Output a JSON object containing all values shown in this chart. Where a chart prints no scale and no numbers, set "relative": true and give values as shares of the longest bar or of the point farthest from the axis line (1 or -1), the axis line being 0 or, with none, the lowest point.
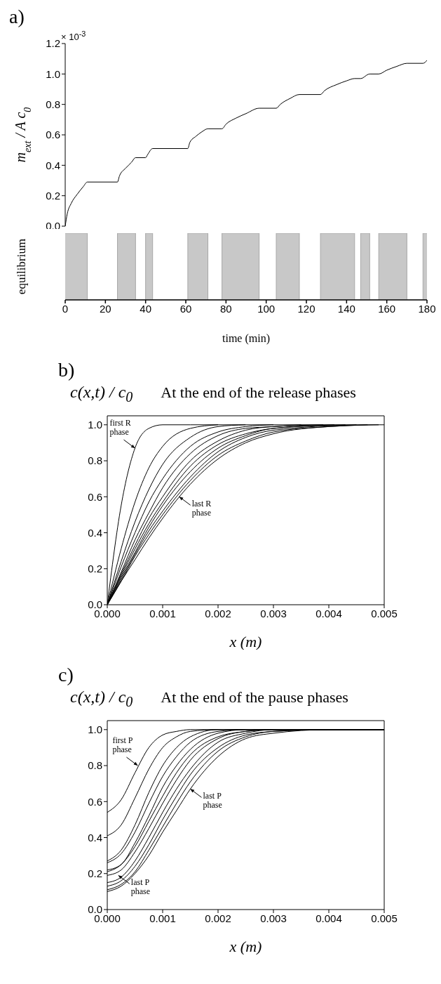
{
  "chart_data": [
    {
      "type": "line",
      "title": "a)",
      "ylabel": "m$_{ext}$ / A c$_{0}$",
      "annotations": [
        "× 10$^{-3}$"
      ],
      "tick_labels": "y",
      "marker": "none",
      "line_style": "solid",
      "xlim": [
        0,
        180
      ],
      "xticks": [
        0,
        20,
        40,
        60,
        80,
        100,
        120,
        140,
        160,
        180
      ],
      "ylim": [
        0,
        1.2
      ],
      "yticks": [
        {
          "value": 0,
          "label": "0.0"
        },
        {
          "value": 0.2,
          "label": "0.2"
        },
        {
          "value": 0.4,
          "label": "0.4"
        },
        {
          "value": 0.6,
          "label": "0.6"
        },
        {
          "value": 0.8,
          "label": "0.8"
        },
        {
          "value": 1,
          "label": "1.0"
        },
        {
          "value": 1.2,
          "label": "1.2"
        }
      ],
      "x": [
        0,
        1,
        3,
        6,
        9,
        11,
        26,
        27,
        30,
        33,
        35,
        40,
        41,
        43.5,
        61,
        62,
        65,
        68,
        71,
        78,
        80,
        85,
        90,
        96.5,
        105,
        107,
        112,
        116.5,
        127,
        129,
        135,
        140,
        144,
        147,
        151.5,
        156,
        160,
        165,
        170,
        178,
        180
      ],
      "series": [
        {
          "color": "#000000",
          "values": [
            0,
            0.08,
            0.15,
            0.21,
            0.26,
            0.29,
            0.29,
            0.33,
            0.38,
            0.42,
            0.45,
            0.45,
            0.47,
            0.51,
            0.51,
            0.55,
            0.59,
            0.62,
            0.64,
            0.64,
            0.67,
            0.71,
            0.74,
            0.775,
            0.775,
            0.8,
            0.84,
            0.865,
            0.865,
            0.89,
            0.93,
            0.955,
            0.97,
            0.97,
            1.0,
            1.0,
            1.025,
            1.05,
            1.07,
            1.07,
            1.09
          ]
        }
      ]
    },
    {
      "type": "area",
      "relative": true,
      "ylabel": "equilibrium",
      "xlabel": "time (min)",
      "xlim": [
        0,
        180
      ],
      "xticks": [
        0,
        20,
        40,
        60,
        80,
        100,
        120,
        140,
        160,
        180
      ],
      "x": [
        0,
        11,
        11,
        26,
        26,
        35,
        35,
        40,
        40,
        43.5,
        43.5,
        61,
        61,
        71,
        71,
        78,
        78,
        96.5,
        96.5,
        105,
        105,
        116.5,
        116.5,
        127,
        127,
        144,
        144,
        147,
        147,
        151.5,
        151.5,
        156,
        156,
        170,
        170,
        178,
        178,
        180
      ],
      "series": [
        {
          "color": "#c8c8c8",
          "values": [
            1,
            1,
            0,
            0,
            1,
            1,
            0,
            0,
            1,
            1,
            0,
            0,
            1,
            1,
            0,
            0,
            1,
            1,
            0,
            0,
            1,
            1,
            0,
            0,
            1,
            1,
            0,
            0,
            1,
            1,
            0,
            0,
            1,
            1,
            0,
            0,
            1,
            1
          ]
        }
      ]
    },
    {
      "type": "line",
      "title": "b)",
      "subtitle": "At the end of the release phases",
      "ylabel": "c(x,t) / c$_{0}$",
      "xlabel": "x (m)",
      "marker": "none",
      "line_style": "solid",
      "xlim": [
        0,
        0.005
      ],
      "xticks": [
        {
          "value": 0,
          "label": "0.000"
        },
        {
          "value": 0.001,
          "label": "0.001"
        },
        {
          "value": 0.002,
          "label": "0.002"
        },
        {
          "value": 0.003,
          "label": "0.003"
        },
        {
          "value": 0.004,
          "label": "0.004"
        },
        {
          "value": 0.005,
          "label": "0.005"
        }
      ],
      "ylim": [
        0,
        1.05
      ],
      "yticks": [
        {
          "value": 0,
          "label": "0.0"
        },
        {
          "value": 0.2,
          "label": "0.2"
        },
        {
          "value": 0.4,
          "label": "0.4"
        },
        {
          "value": 0.6,
          "label": "0.6"
        },
        {
          "value": 0.8,
          "label": "0.8"
        },
        {
          "value": 1,
          "label": "1.0"
        }
      ],
      "annotations": [
        {
          "text": "first R phase",
          "x": 0.0005,
          "y": 0.87
        },
        {
          "text": "last R phase",
          "x": 0.0013,
          "y": 0.6
        }
      ],
      "series": [
        {
          "color": "#000000",
          "x": [
            0,
            0.00025,
            0.0005,
            0.00075,
            0.001,
            0.0015,
            0.002,
            0.0025,
            0.003,
            0.004,
            0.005
          ],
          "values": [
            0,
            0.55,
            0.87,
            0.98,
            1,
            1,
            1,
            1,
            1,
            1,
            1
          ]
        },
        {
          "color": "#000000",
          "x": [
            0,
            0.00025,
            0.0005,
            0.00075,
            0.001,
            0.0015,
            0.002
          ],
          "values": [
            0,
            0.31,
            0.57,
            0.76,
            0.88,
            0.98,
            1
          ]
        },
        {
          "color": "#000000",
          "x": [
            0,
            0.00025,
            0.0005,
            0.00075,
            0.001,
            0.0015,
            0.002,
            0.0025
          ],
          "values": [
            0,
            0.24,
            0.46,
            0.64,
            0.78,
            0.93,
            0.99,
            1
          ]
        },
        {
          "color": "#000000",
          "x": [
            0,
            0.00025,
            0.0005,
            0.00075,
            0.001,
            0.0015,
            0.002,
            0.0025,
            0.003
          ],
          "values": [
            0,
            0.21,
            0.4,
            0.57,
            0.7,
            0.88,
            0.96,
            0.99,
            1
          ]
        },
        {
          "color": "#000000",
          "x": [
            0,
            0.00025,
            0.0005,
            0.00075,
            0.001,
            0.0015,
            0.002,
            0.0025,
            0.003,
            0.0035
          ],
          "values": [
            0,
            0.18,
            0.36,
            0.51,
            0.65,
            0.84,
            0.94,
            0.98,
            0.99,
            1
          ]
        },
        {
          "color": "#000000",
          "x": [
            0,
            0.00025,
            0.0005,
            0.00075,
            0.001,
            0.0015,
            0.002,
            0.0025,
            0.003,
            0.0039
          ],
          "values": [
            0,
            0.17,
            0.33,
            0.48,
            0.6,
            0.8,
            0.91,
            0.97,
            0.99,
            1
          ]
        },
        {
          "color": "#000000",
          "x": [
            0,
            0.00025,
            0.0005,
            0.00075,
            0.001,
            0.0015,
            0.002,
            0.0025,
            0.003,
            0.0041
          ],
          "values": [
            0,
            0.16,
            0.31,
            0.45,
            0.57,
            0.77,
            0.89,
            0.95,
            0.98,
            1
          ]
        },
        {
          "color": "#000000",
          "x": [
            0,
            0.00025,
            0.0005,
            0.00075,
            0.001,
            0.0015,
            0.002,
            0.0025,
            0.003,
            0.0043
          ],
          "values": [
            0,
            0.15,
            0.29,
            0.43,
            0.55,
            0.74,
            0.87,
            0.94,
            0.98,
            1
          ]
        },
        {
          "color": "#000000",
          "x": [
            0,
            0.00025,
            0.0005,
            0.00075,
            0.001,
            0.0015,
            0.002,
            0.0025,
            0.003,
            0.0045
          ],
          "values": [
            0,
            0.14,
            0.28,
            0.41,
            0.52,
            0.71,
            0.85,
            0.93,
            0.97,
            1
          ]
        },
        {
          "color": "#000000",
          "x": [
            0,
            0.00025,
            0.0005,
            0.00075,
            0.001,
            0.0015,
            0.002,
            0.0025,
            0.003,
            0.004,
            0.0047
          ],
          "values": [
            0,
            0.13,
            0.27,
            0.39,
            0.5,
            0.69,
            0.83,
            0.91,
            0.96,
            0.99,
            1
          ]
        },
        {
          "color": "#000000",
          "x": [
            0,
            0.00025,
            0.0005,
            0.00075,
            0.001,
            0.0015,
            0.002,
            0.0025,
            0.003,
            0.004,
            0.0049
          ],
          "values": [
            0,
            0.13,
            0.25,
            0.37,
            0.48,
            0.67,
            0.81,
            0.9,
            0.95,
            0.99,
            1
          ]
        }
      ]
    },
    {
      "type": "line",
      "title": "c)",
      "subtitle": "At the end of the pause phases",
      "ylabel": "c(x,t) / c$_{0}$",
      "xlabel": "x (m)",
      "marker": "none",
      "line_style": "solid",
      "xlim": [
        0,
        0.005
      ],
      "xticks": [
        {
          "value": 0,
          "label": "0.000"
        },
        {
          "value": 0.001,
          "label": "0.001"
        },
        {
          "value": 0.002,
          "label": "0.002"
        },
        {
          "value": 0.003,
          "label": "0.003"
        },
        {
          "value": 0.004,
          "label": "0.004"
        },
        {
          "value": 0.005,
          "label": "0.005"
        }
      ],
      "ylim": [
        0,
        1.05
      ],
      "yticks": [
        {
          "value": 0,
          "label": "0.0"
        },
        {
          "value": 0.2,
          "label": "0.2"
        },
        {
          "value": 0.4,
          "label": "0.4"
        },
        {
          "value": 0.6,
          "label": "0.6"
        },
        {
          "value": 0.8,
          "label": "0.8"
        },
        {
          "value": 1,
          "label": "1.0"
        }
      ],
      "annotations": [
        {
          "text": "first P phase",
          "x": 0.00055,
          "y": 0.8
        },
        {
          "text": "last P phase",
          "x": 0.0015,
          "y": 0.67
        },
        {
          "text": "last P phase",
          "x": 0.0002,
          "y": 0.19
        }
      ],
      "x": [
        0,
        0.00025,
        0.0005,
        0.00075,
        0.001,
        0.00125,
        0.0015,
        0.002,
        0.0025,
        0.003,
        0.004,
        0.005
      ],
      "series": [
        {
          "color": "#000000",
          "values": [
            0.54,
            0.61,
            0.76,
            0.9,
            0.97,
            0.99,
            1,
            1,
            1,
            1,
            1,
            1
          ]
        },
        {
          "color": "#000000",
          "values": [
            0.41,
            0.47,
            0.62,
            0.78,
            0.9,
            0.96,
            0.99,
            1,
            1,
            1,
            1,
            1
          ]
        },
        {
          "color": "#000000",
          "values": [
            0.27,
            0.33,
            0.47,
            0.65,
            0.8,
            0.9,
            0.96,
            1,
            1,
            1,
            1,
            1
          ]
        },
        {
          "color": "#000000",
          "values": [
            0.26,
            0.31,
            0.43,
            0.59,
            0.74,
            0.85,
            0.93,
            0.99,
            1,
            1,
            1,
            1
          ]
        },
        {
          "color": "#000000",
          "values": [
            0.22,
            0.25,
            0.37,
            0.52,
            0.68,
            0.8,
            0.89,
            0.98,
            1,
            1,
            1,
            1
          ]
        },
        {
          "color": "#000000",
          "values": [
            0.21,
            0.25,
            0.35,
            0.49,
            0.63,
            0.76,
            0.86,
            0.96,
            0.99,
            1,
            1,
            1
          ]
        },
        {
          "color": "#000000",
          "values": [
            0.19,
            0.22,
            0.32,
            0.45,
            0.59,
            0.72,
            0.83,
            0.95,
            0.99,
            1,
            1,
            1
          ]
        },
        {
          "color": "#000000",
          "values": [
            0.15,
            0.18,
            0.27,
            0.4,
            0.54,
            0.67,
            0.78,
            0.93,
            0.98,
            1,
            1,
            1
          ]
        },
        {
          "color": "#000000",
          "values": [
            0.13,
            0.16,
            0.24,
            0.36,
            0.5,
            0.63,
            0.75,
            0.9,
            0.97,
            0.99,
            1,
            1
          ]
        },
        {
          "color": "#000000",
          "values": [
            0.11,
            0.14,
            0.21,
            0.33,
            0.46,
            0.59,
            0.71,
            0.88,
            0.96,
            0.99,
            1,
            1
          ]
        },
        {
          "color": "#000000",
          "values": [
            0.1,
            0.13,
            0.2,
            0.3,
            0.43,
            0.55,
            0.67,
            0.85,
            0.95,
            0.98,
            1,
            1
          ]
        }
      ]
    }
  ]
}
